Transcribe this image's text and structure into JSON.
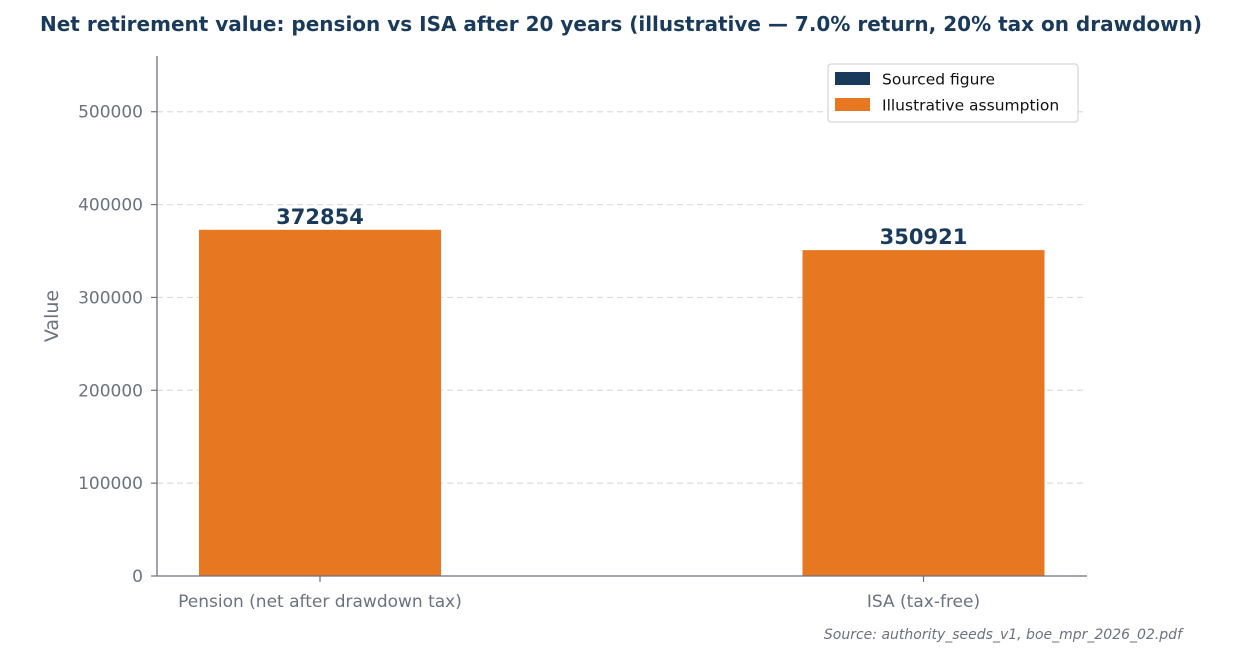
{
  "chart_data": {
    "type": "bar",
    "title": "Net retirement value: pension vs ISA after 20 years (illustrative — 7.0% return, 20% tax on drawdown)",
    "ylabel": "Value",
    "xlabel": "",
    "categories": [
      "Pension (net after drawdown tax)",
      "ISA (tax-free)"
    ],
    "values": [
      372854,
      350921
    ],
    "value_labels": [
      "372854",
      "350921"
    ],
    "bar_series": [
      "Illustrative assumption",
      "Illustrative assumption"
    ],
    "ylim": [
      0,
      560000
    ],
    "yticks": [
      0,
      100000,
      200000,
      300000,
      400000,
      500000
    ],
    "ytick_labels": [
      "0",
      "100000",
      "200000",
      "300000",
      "400000",
      "500000"
    ],
    "grid": "y-dashed",
    "legend": {
      "placement": "top-right",
      "entries": [
        {
          "label": "Sourced figure",
          "color": "#1a3a5c"
        },
        {
          "label": "Illustrative assumption",
          "color": "#e87722"
        }
      ]
    },
    "source": "Source: authority_seeds_v1, boe_mpr_2026_02.pdf"
  },
  "colors": {
    "sourced": "#1a3a5c",
    "illustrative": "#e87722",
    "axis": "#6b7280",
    "grid": "#d9dde3"
  }
}
